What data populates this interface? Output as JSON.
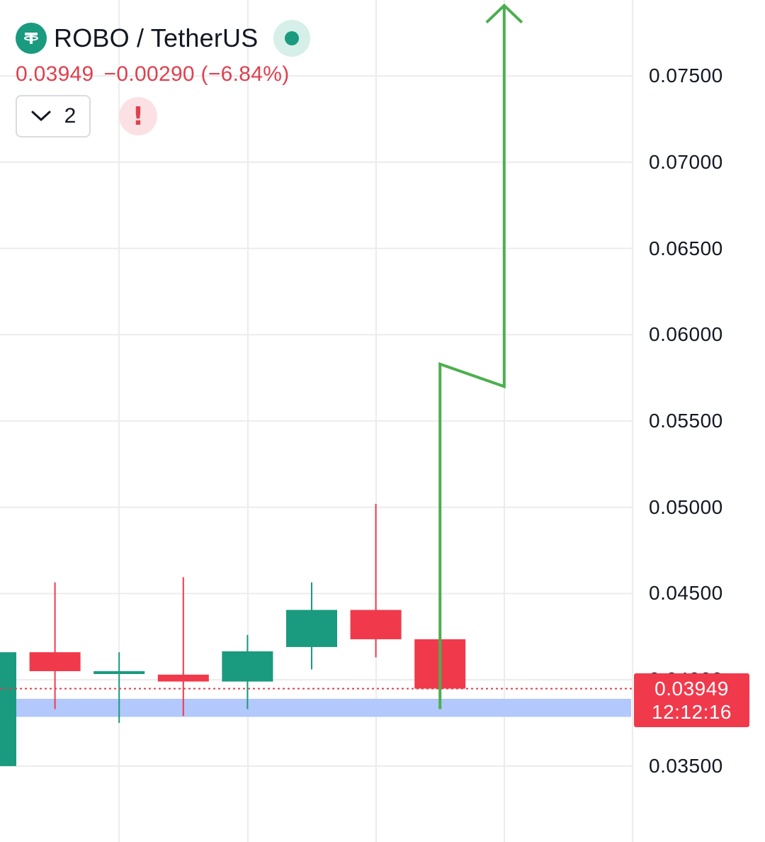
{
  "header": {
    "symbol": "ROBO / TetherUS",
    "last_price": "0.03949",
    "change": "−0.00290 (−6.84%)",
    "indicator_count": "2",
    "alert_glyph": "!",
    "coin_icon": "tether-icon",
    "status_icon": "market-open-dot-icon"
  },
  "price_tag": {
    "price": "0.03949",
    "countdown": "12:12:16"
  },
  "colors": {
    "up": "#1a9a7e",
    "down": "#f03a4c",
    "drawing": "#4caf50",
    "highlight_band": "#b3c8fb",
    "gridline": "#ececec",
    "price_line": "#e0404e"
  },
  "chart_data": {
    "type": "candlestick",
    "y_axis": {
      "ticks": [
        "0.07500",
        "0.07000",
        "0.06500",
        "0.06000",
        "0.05500",
        "0.05000",
        "0.04500",
        "0.04000",
        "0.03500"
      ],
      "range": [
        0.0306,
        0.0794
      ],
      "grid": true
    },
    "candles": [
      {
        "open": 0.035,
        "high": 0.0416,
        "low": 0.035,
        "close": 0.0416
      },
      {
        "open": 0.0416,
        "high": 0.04565,
        "low": 0.0383,
        "close": 0.0405
      },
      {
        "open": 0.0405,
        "high": 0.0416,
        "low": 0.0375,
        "close": 0.0405
      },
      {
        "open": 0.0403,
        "high": 0.04595,
        "low": 0.0379,
        "close": 0.0399
      },
      {
        "open": 0.0399,
        "high": 0.0426,
        "low": 0.0383,
        "close": 0.04165
      },
      {
        "open": 0.0419,
        "high": 0.04565,
        "low": 0.0406,
        "close": 0.04405
      },
      {
        "open": 0.04405,
        "high": 0.0502,
        "low": 0.0413,
        "close": 0.04235
      },
      {
        "open": 0.04235,
        "high": 0.0447,
        "low": 0.0395,
        "close": 0.03949
      }
    ],
    "last_price": 0.03949,
    "highlight_band": [
      0.03785,
      0.0389
    ],
    "drawing": {
      "type": "arrow",
      "points": [
        [
          7,
          0.0383
        ],
        [
          7,
          0.0583
        ],
        [
          8,
          0.057
        ],
        [
          8,
          0.079
        ]
      ]
    }
  }
}
